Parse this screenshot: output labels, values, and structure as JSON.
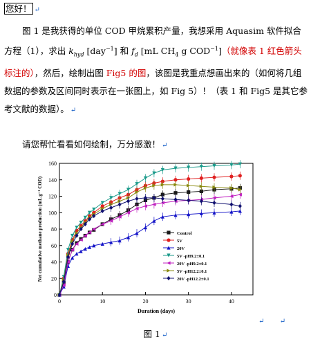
{
  "doc": {
    "greeting": "您好！",
    "p1_a": "图 1 是我获得的单位 COD 甲烷累积产量，我想采用 Aquasim 软件拟合方程（1），求出 ",
    "p1_khyd": "k",
    "p1_khyd_sub": "hyd",
    "p1_b": " [day",
    "p1_b_sup": "−1",
    "p1_c": "] 和 ",
    "p1_fd": "f",
    "p1_fd_sub": "d",
    "p1_d": " [mL CH",
    "p1_d_sub": "4",
    "p1_e": " g COD",
    "p1_e_sup": "−1",
    "p1_f": "]",
    "p1_red1": "（就像表 1 红色箭头标注的）",
    "p1_g": "，然后，绘制出图 ",
    "p1_red2": "Fig5 的图",
    "p1_h": "，该图是我重点想画出来的（如何将几组数据的参数及区间同时表示在一张图上，如 Fig 5）！（表 1 和 Fig5 是其它参考文献的数据）。",
    "p2": "请您帮忙看看如何绘制，万分感激！",
    "caption": "图 1"
  },
  "chart_data": {
    "type": "line",
    "title": "",
    "xlabel": "Duration (days)",
    "ylabel": "Net cumulative methane production (mL g⁻¹ COD)",
    "xlim": [
      0,
      45
    ],
    "ylim": [
      0,
      160
    ],
    "xticks": [
      0,
      10,
      20,
      30,
      40
    ],
    "yticks": [
      0,
      20,
      40,
      60,
      80,
      100,
      120,
      140,
      160
    ],
    "legend_position": "lower-right",
    "x": [
      0,
      1,
      2,
      3,
      4,
      5,
      6,
      7,
      8,
      10,
      12,
      14,
      16,
      18,
      20,
      22,
      24,
      27,
      30,
      33,
      36,
      40,
      42
    ],
    "series": [
      {
        "name": "Control",
        "color": "#1a1a1a",
        "marker": "square",
        "values": [
          0,
          15,
          40,
          55,
          63,
          68,
          72,
          76,
          79,
          86,
          92,
          97,
          103,
          110,
          115,
          118,
          122,
          124,
          125,
          126,
          128,
          129,
          130
        ]
      },
      {
        "name": "5V",
        "color": "#e02020",
        "marker": "circle",
        "values": [
          0,
          20,
          50,
          67,
          78,
          84,
          90,
          96,
          100,
          108,
          113,
          118,
          122,
          128,
          133,
          136,
          138,
          140,
          141,
          142,
          143,
          144,
          145
        ]
      },
      {
        "name": "20V",
        "color": "#1414c8",
        "marker": "triangle-up",
        "values": [
          0,
          10,
          35,
          45,
          50,
          53,
          56,
          58,
          60,
          62,
          64,
          66,
          70,
          75,
          82,
          90,
          95,
          97,
          98,
          99,
          100,
          101,
          102
        ]
      },
      {
        "name": "5V -pH9.2±0.1",
        "color": "#1a9a8a",
        "marker": "triangle-down",
        "values": [
          0,
          22,
          55,
          72,
          82,
          88,
          94,
          100,
          104,
          112,
          118,
          123,
          128,
          135,
          142,
          148,
          152,
          154,
          155,
          156,
          157,
          158,
          159
        ]
      },
      {
        "name": "20V -pH9.2±0.1",
        "color": "#c020c0",
        "marker": "triangle-left",
        "values": [
          0,
          12,
          40,
          55,
          62,
          67,
          72,
          76,
          80,
          86,
          90,
          95,
          100,
          105,
          108,
          110,
          112,
          114,
          115,
          116,
          118,
          120,
          122
        ]
      },
      {
        "name": "5V -pH12.2±0.1",
        "color": "#8a8a10",
        "marker": "triangle-right",
        "values": [
          0,
          18,
          48,
          65,
          75,
          82,
          88,
          94,
          98,
          105,
          110,
          114,
          118,
          125,
          130,
          133,
          134,
          134,
          133,
          132,
          131,
          130,
          128
        ]
      },
      {
        "name": "20V -pH12.2±0.1",
        "color": "#101070",
        "marker": "diamond",
        "values": [
          0,
          16,
          46,
          62,
          72,
          80,
          86,
          92,
          96,
          102,
          106,
          110,
          114,
          117,
          118,
          118,
          117,
          116,
          115,
          114,
          112,
          110,
          108
        ]
      }
    ]
  }
}
